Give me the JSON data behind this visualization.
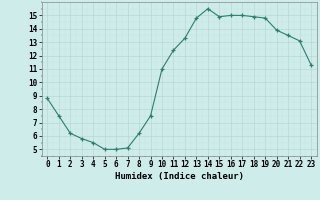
{
  "x": [
    0,
    1,
    2,
    3,
    4,
    5,
    6,
    7,
    8,
    9,
    10,
    11,
    12,
    13,
    14,
    15,
    16,
    17,
    18,
    19,
    20,
    21,
    22,
    23
  ],
  "y": [
    8.8,
    7.5,
    6.2,
    5.8,
    5.5,
    5.0,
    5.0,
    5.1,
    6.2,
    7.5,
    11.0,
    12.4,
    13.3,
    14.8,
    15.5,
    14.9,
    15.0,
    15.0,
    14.9,
    14.8,
    13.9,
    13.5,
    13.1,
    11.3
  ],
  "xlim": [
    -0.5,
    23.5
  ],
  "ylim": [
    4.5,
    16.0
  ],
  "yticks": [
    5,
    6,
    7,
    8,
    9,
    10,
    11,
    12,
    13,
    14,
    15
  ],
  "xticks": [
    0,
    1,
    2,
    3,
    4,
    5,
    6,
    7,
    8,
    9,
    10,
    11,
    12,
    13,
    14,
    15,
    16,
    17,
    18,
    19,
    20,
    21,
    22,
    23
  ],
  "xlabel": "Humidex (Indice chaleur)",
  "line_color": "#2e7d6e",
  "marker": "+",
  "bg_color": "#cdecea",
  "grid_major_color": "#b8d8d5",
  "grid_minor_color": "#c8e6e3",
  "label_fontsize": 6.5,
  "tick_fontsize": 5.5
}
